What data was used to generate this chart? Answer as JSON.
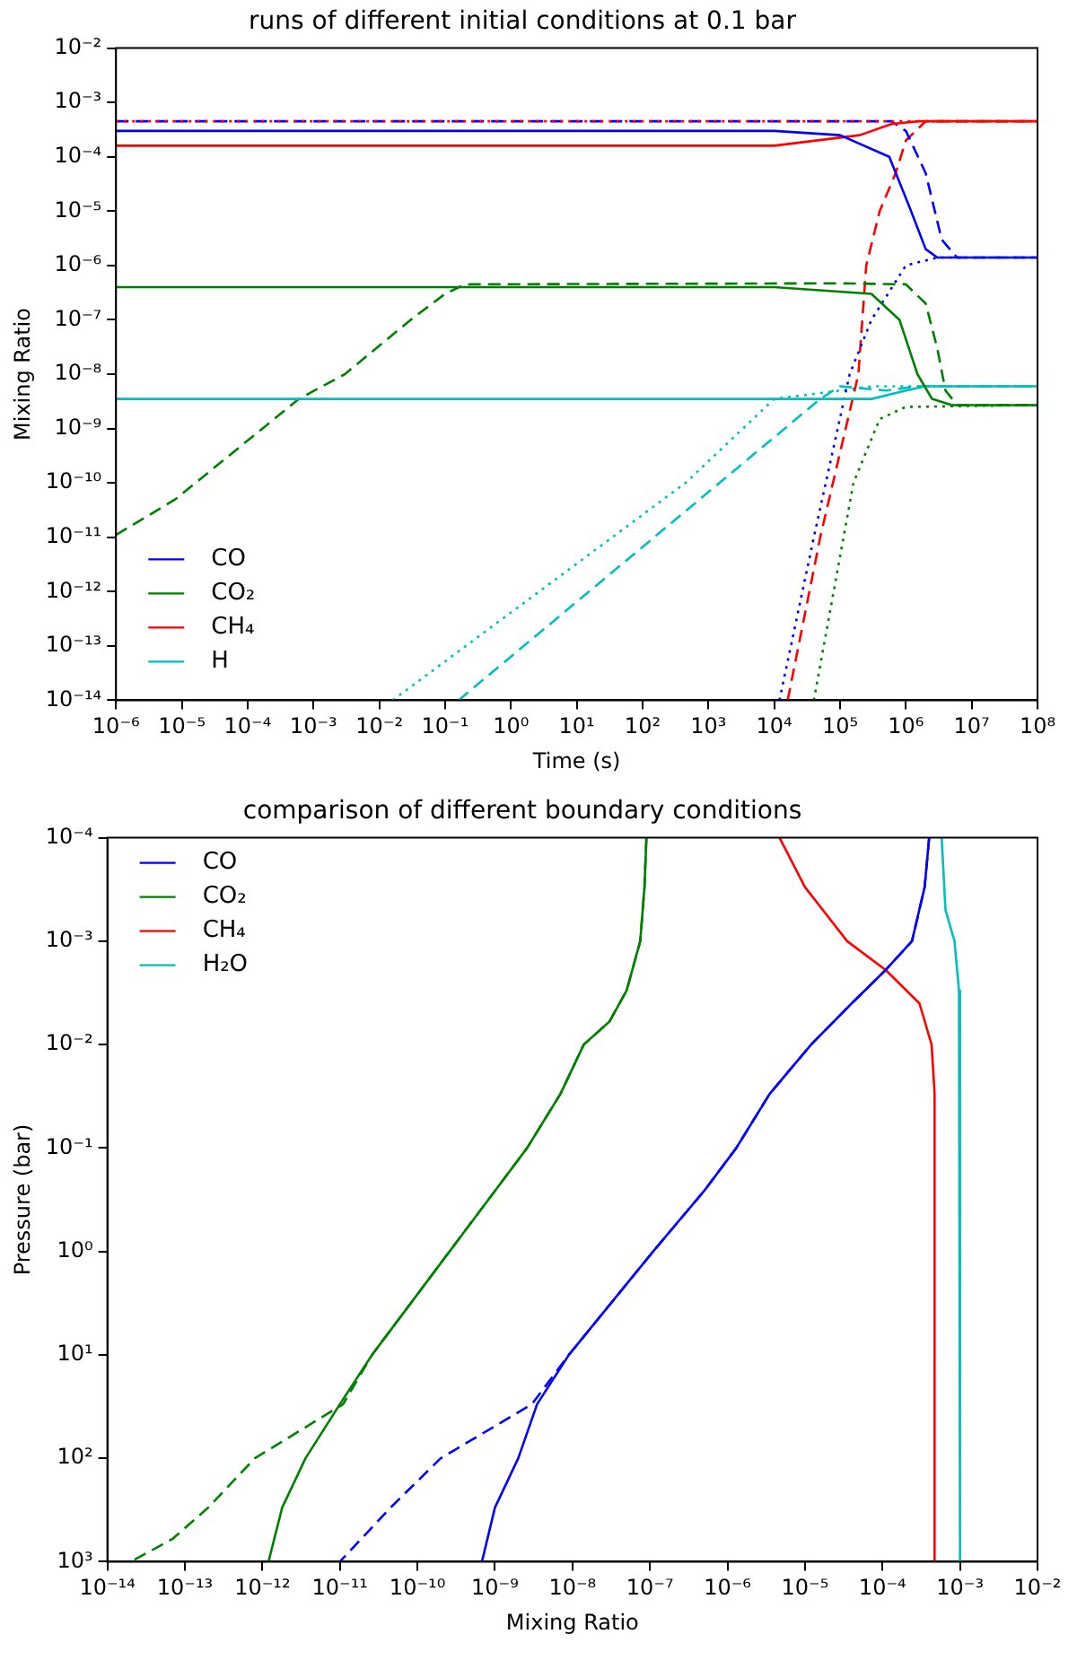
{
  "chart_data": [
    {
      "type": "line",
      "title": "runs of different initial conditions at 0.1 bar",
      "xlabel": "Time (s)",
      "ylabel": "Mixing Ratio",
      "log": "xy",
      "grid": false,
      "legend": "bottom left",
      "marker": "none",
      "xlim": [
        1e-06,
        100000000.0
      ],
      "ylim": [
        1e-14,
        0.01
      ],
      "xticks": [
        {
          "value": 1e-06,
          "label": "10⁻⁶"
        },
        {
          "value": 1e-05,
          "label": "10⁻⁵"
        },
        {
          "value": 0.0001,
          "label": "10⁻⁴"
        },
        {
          "value": 0.001,
          "label": "10⁻³"
        },
        {
          "value": 0.01,
          "label": "10⁻²"
        },
        {
          "value": 0.1,
          "label": "10⁻¹"
        },
        {
          "value": 1,
          "label": "10⁰"
        },
        {
          "value": 10,
          "label": "10¹"
        },
        {
          "value": 100,
          "label": "10²"
        },
        {
          "value": 1000,
          "label": "10³"
        },
        {
          "value": 10000.0,
          "label": "10⁴"
        },
        {
          "value": 100000.0,
          "label": "10⁵"
        },
        {
          "value": 1000000.0,
          "label": "10⁶"
        },
        {
          "value": 10000000.0,
          "label": "10⁷"
        },
        {
          "value": 100000000.0,
          "label": "10⁸"
        }
      ],
      "yticks": [
        {
          "value": 1e-14,
          "label": "10⁻¹⁴"
        },
        {
          "value": 1e-13,
          "label": "10⁻¹³"
        },
        {
          "value": 1e-12,
          "label": "10⁻¹²"
        },
        {
          "value": 1e-11,
          "label": "10⁻¹¹"
        },
        {
          "value": 1e-10,
          "label": "10⁻¹⁰"
        },
        {
          "value": 1e-09,
          "label": "10⁻⁹"
        },
        {
          "value": 1e-08,
          "label": "10⁻⁸"
        },
        {
          "value": 1e-07,
          "label": "10⁻⁷"
        },
        {
          "value": 1e-06,
          "label": "10⁻⁶"
        },
        {
          "value": 1e-05,
          "label": "10⁻⁵"
        },
        {
          "value": 0.0001,
          "label": "10⁻⁴"
        },
        {
          "value": 0.001,
          "label": "10⁻³"
        },
        {
          "value": 0.01,
          "label": "10⁻²"
        }
      ],
      "series": [
        {
          "name": "CO",
          "color": "#0000ff",
          "line_style": "solid",
          "x": [
            1e-06,
            10000.0,
            100000.0,
            560000.0,
            1200000.0,
            2000000.0,
            3000000.0,
            100000000.0
          ],
          "values": [
            0.0003,
            0.0003,
            0.00025,
            0.0001,
            1e-05,
            2e-06,
            1.4e-06,
            1.4e-06
          ]
        },
        {
          "name": "CO₂",
          "color": "#008000",
          "line_style": "solid",
          "x": [
            1e-06,
            10000.0,
            300000.0,
            800000.0,
            1500000.0,
            2500000.0,
            5000000.0,
            100000000.0
          ],
          "values": [
            4e-07,
            4e-07,
            3e-07,
            1e-07,
            1e-08,
            3.5e-09,
            2.7e-09,
            2.7e-09
          ]
        },
        {
          "name": "CH₄",
          "color": "#ff0000",
          "line_style": "solid",
          "x": [
            1e-06,
            10000.0,
            200000.0,
            600000.0,
            1500000.0,
            100000000.0
          ],
          "values": [
            0.00016,
            0.00016,
            0.00025,
            0.0004,
            0.00045,
            0.00045
          ]
        },
        {
          "name": "H",
          "color": "#00bfbf",
          "line_style": "solid",
          "x": [
            1e-06,
            300000.0,
            1000000.0,
            2000000.0,
            100000000.0
          ],
          "values": [
            3.5e-09,
            3.5e-09,
            5e-09,
            6e-09,
            6e-09
          ]
        },
        {
          "color": "#ff0000",
          "line_style": "dotted",
          "x": [
            1e-06,
            100000000.0
          ],
          "values": [
            0.00045,
            0.00045
          ]
        },
        {
          "color": "#0000ff",
          "line_style": "dashed",
          "x": [
            1e-06,
            600000.0,
            1000000.0,
            2000000.0,
            3500000.0,
            6000000.0,
            100000000.0
          ],
          "values": [
            0.00045,
            0.00045,
            0.0003,
            5e-05,
            3e-06,
            1.4e-06,
            1.4e-06
          ]
        },
        {
          "color": "#0000ff",
          "line_style": "dotted",
          "x": [
            12000.0,
            40000.0,
            140000.0,
            300000.0,
            1000000.0,
            3000000.0,
            100000000.0
          ],
          "values": [
            1e-14,
            1e-11,
            1e-08,
            1e-07,
            1e-06,
            1.4e-06,
            1.4e-06
          ]
        },
        {
          "color": "#008000",
          "line_style": "dashed",
          "x": [
            1e-06,
            8e-06,
            0.0006,
            0.003,
            0.03,
            0.1,
            0.2,
            100000.0,
            1000000.0,
            2000000.0,
            3000000.0,
            4000000.0,
            6000000.0,
            100000000.0
          ],
          "values": [
            1.1e-11,
            5e-11,
            3.5e-09,
            1e-08,
            1e-07,
            3e-07,
            4.5e-07,
            4.7e-07,
            4.5e-07,
            2e-07,
            3e-08,
            5e-09,
            2.7e-09,
            2.7e-09
          ]
        },
        {
          "color": "#008000",
          "line_style": "dotted",
          "x": [
            40000.0,
            80000.0,
            160000.0,
            400000.0,
            1000000.0,
            100000000.0
          ],
          "values": [
            1e-14,
            1e-12,
            1e-10,
            1.5e-09,
            2.5e-09,
            2.7e-09
          ]
        },
        {
          "color": "#ff0000",
          "line_style": "dashed",
          "x": [
            16000.0,
            50000.0,
            190000.0,
            250000.0,
            400000.0,
            700000.0,
            1000000.0,
            2000000.0,
            100000000.0
          ],
          "values": [
            1e-14,
            1e-11,
            1e-08,
            1e-06,
            1e-05,
            5e-05,
            0.0002,
            0.00045,
            0.00045
          ]
        },
        {
          "color": "#00bfbf",
          "line_style": "dotted",
          "x": [
            0.016,
            450,
            10000.0,
            100000.0,
            300000.0,
            100000000.0
          ],
          "values": [
            1e-14,
            1e-10,
            3.5e-09,
            5e-09,
            6e-09,
            6e-09
          ]
        },
        {
          "color": "#00bfbf",
          "line_style": "dashed",
          "x": [
            0.16,
            50000.0,
            100000.0,
            500000.0,
            1500000.0,
            100000000.0
          ],
          "values": [
            1e-14,
            3.5e-09,
            6e-09,
            5e-09,
            6e-09,
            6e-09
          ]
        }
      ]
    },
    {
      "type": "line",
      "title": "comparison of different boundary conditions",
      "xlabel": "Mixing Ratio",
      "ylabel": "Pressure (bar)",
      "log": "xy",
      "grid": false,
      "legend": "top left",
      "marker": "none",
      "xlim": [
        1e-14,
        0.01
      ],
      "ylim": [
        1000,
        0.0001
      ],
      "xticks": [
        {
          "value": 1e-14,
          "label": "10⁻¹⁴"
        },
        {
          "value": 1e-13,
          "label": "10⁻¹³"
        },
        {
          "value": 1e-12,
          "label": "10⁻¹²"
        },
        {
          "value": 1e-11,
          "label": "10⁻¹¹"
        },
        {
          "value": 1e-10,
          "label": "10⁻¹⁰"
        },
        {
          "value": 1e-09,
          "label": "10⁻⁹"
        },
        {
          "value": 1e-08,
          "label": "10⁻⁸"
        },
        {
          "value": 1e-07,
          "label": "10⁻⁷"
        },
        {
          "value": 1e-06,
          "label": "10⁻⁶"
        },
        {
          "value": 1e-05,
          "label": "10⁻⁵"
        },
        {
          "value": 0.0001,
          "label": "10⁻⁴"
        },
        {
          "value": 0.001,
          "label": "10⁻³"
        },
        {
          "value": 0.01,
          "label": "10⁻²"
        }
      ],
      "yticks": [
        {
          "value": 1000,
          "label": "10³"
        },
        {
          "value": 100,
          "label": "10²"
        },
        {
          "value": 10,
          "label": "10¹"
        },
        {
          "value": 1,
          "label": "10⁰"
        },
        {
          "value": 0.1,
          "label": "10⁻¹"
        },
        {
          "value": 0.01,
          "label": "10⁻²"
        },
        {
          "value": 0.001,
          "label": "10⁻³"
        },
        {
          "value": 0.0001,
          "label": "10⁻⁴"
        }
      ],
      "series": [
        {
          "name": "CO",
          "color": "#0000ff",
          "line_style": "solid",
          "x": [
            0.0004,
            0.00035,
            0.00024,
            0.00011,
            4e-05,
            1.2e-05,
            3.5e-06,
            1.3e-06,
            5e-07,
            1.1e-07,
            9e-09,
            3.5e-09,
            2e-09,
            1e-09,
            6.8e-10
          ],
          "values": [
            0.0001,
            0.0003,
            0.001,
            0.0019,
            0.004,
            0.01,
            0.03,
            0.1,
            0.26,
            1,
            10,
            30,
            100,
            300,
            1000
          ]
        },
        {
          "name": "CO₂",
          "color": "#008000",
          "line_style": "solid",
          "x": [
            9e-08,
            8.5e-08,
            7.5e-08,
            5e-08,
            3e-08,
            1.4e-08,
            7e-09,
            2.6e-09,
            1e-09,
            2.6e-10,
            2.6e-11,
            1e-11,
            3.6e-12,
            1.8e-12,
            1.2e-12
          ],
          "values": [
            0.0001,
            0.0003,
            0.001,
            0.003,
            0.006,
            0.01,
            0.03,
            0.1,
            0.26,
            1,
            10,
            30,
            100,
            300,
            1000
          ]
        },
        {
          "name": "CH₄",
          "color": "#ff0000",
          "line_style": "solid",
          "x": [
            4.7e-06,
            1e-05,
            3.5e-05,
            0.00011,
            0.0003,
            0.00043,
            0.00047,
            0.00047
          ],
          "values": [
            0.0001,
            0.0003,
            0.001,
            0.0019,
            0.004,
            0.01,
            0.03,
            1000
          ]
        },
        {
          "name": "H₂O",
          "color": "#00bfbf",
          "line_style": "solid",
          "x": [
            0.00058,
            0.00065,
            0.00085,
            0.00097,
            0.001,
            0.001
          ],
          "values": [
            0.0001,
            0.0005,
            0.001,
            0.003,
            0.01,
            1000
          ]
        },
        {
          "color": "#0000ff",
          "line_style": "dashed",
          "x": [
            0.0004,
            0.00035,
            0.00024,
            0.00011,
            4e-05,
            1.2e-05,
            3.5e-06,
            1.3e-06,
            5e-07,
            1.1e-07,
            9e-09,
            3e-09,
            2e-10,
            4.5e-11,
            1e-11
          ],
          "values": [
            0.0001,
            0.0003,
            0.001,
            0.0019,
            0.004,
            0.01,
            0.03,
            0.1,
            0.26,
            1,
            10,
            30,
            100,
            300,
            1000
          ]
        },
        {
          "color": "#008000",
          "line_style": "dashed",
          "x": [
            9e-08,
            8.5e-08,
            7.5e-08,
            5e-08,
            3e-08,
            1.4e-08,
            7e-09,
            2.6e-09,
            1e-09,
            2.6e-10,
            2.6e-11,
            1.1e-11,
            8e-13,
            2e-13,
            7e-14,
            2e-14
          ],
          "values": [
            0.0001,
            0.0003,
            0.001,
            0.003,
            0.006,
            0.01,
            0.03,
            0.1,
            0.26,
            1,
            10,
            30,
            100,
            300,
            600,
            1000
          ]
        }
      ]
    }
  ]
}
